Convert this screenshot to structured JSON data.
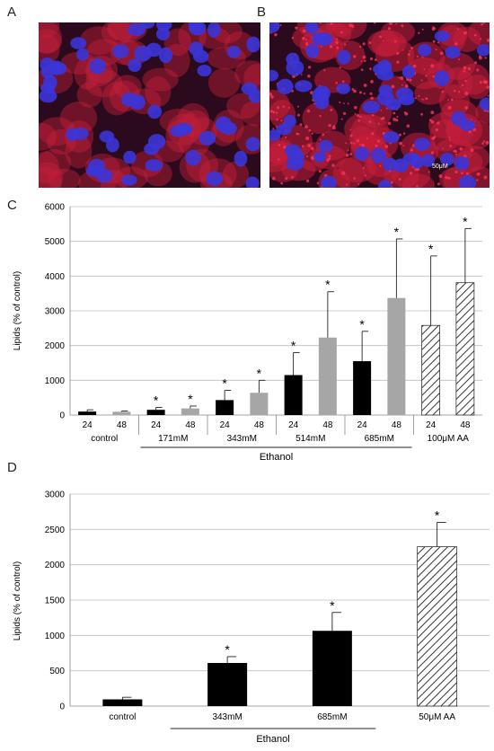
{
  "panels": {
    "a": "A",
    "b": "B",
    "c": "C",
    "d": "D"
  },
  "scale_bar_label": "50μM",
  "colors": {
    "black_bar": "#000000",
    "gray_bar": "#a6a6a6",
    "hatch": "#333333",
    "grid": "#bfbfbf",
    "micro_bg": "#2a0a1c",
    "nucleus": "#3b35d8",
    "cytoplasm": "#c41e3a"
  },
  "chart_data": [
    {
      "panel": "C",
      "type": "bar",
      "ylabel": "Lipids (% of control)",
      "ylim": [
        0,
        6000
      ],
      "yticks": [
        0,
        1000,
        2000,
        3000,
        4000,
        5000,
        6000
      ],
      "grid": true,
      "hours": [
        "24",
        "48",
        "24",
        "48",
        "24",
        "48",
        "24",
        "48",
        "24",
        "48",
        "24",
        "48"
      ],
      "groups": [
        "control",
        "171mM",
        "343mM",
        "514mM",
        "685mM",
        "100μM  AA"
      ],
      "group_label": "Ethanol",
      "values": [
        100,
        95,
        150,
        190,
        430,
        640,
        1150,
        2230,
        1550,
        3370,
        2580,
        3810
      ],
      "errors": [
        50,
        20,
        70,
        70,
        280,
        360,
        650,
        1320,
        860,
        1700,
        2000,
        1560
      ],
      "fill": [
        "black",
        "gray",
        "black",
        "gray",
        "black",
        "gray",
        "black",
        "gray",
        "black",
        "gray",
        "hatch",
        "hatch"
      ],
      "significant": [
        false,
        false,
        true,
        true,
        true,
        true,
        true,
        true,
        true,
        true,
        true,
        true
      ],
      "sig_mark": "*"
    },
    {
      "panel": "D",
      "type": "bar",
      "ylabel": "Lipids (% of control)",
      "ylim": [
        0,
        3000
      ],
      "yticks": [
        0,
        500,
        1000,
        1500,
        2000,
        2500,
        3000
      ],
      "grid": true,
      "categories": [
        "control",
        "343mM",
        "685mM",
        "50μM  AA"
      ],
      "group_label": "Ethanol",
      "values": [
        95,
        610,
        1065,
        2255
      ],
      "errors": [
        30,
        90,
        260,
        345
      ],
      "fill": [
        "black",
        "black",
        "black",
        "hatch"
      ],
      "significant": [
        false,
        true,
        true,
        true
      ],
      "sig_mark": "*"
    }
  ]
}
